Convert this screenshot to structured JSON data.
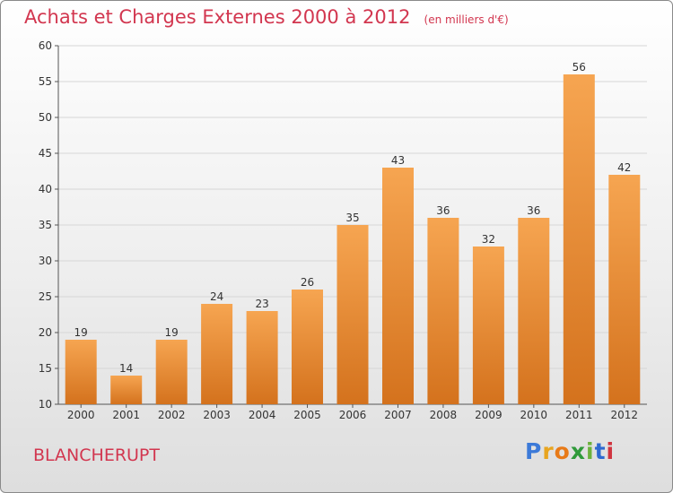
{
  "chart_title": "Achats et Charges Externes 2000 à 2012",
  "chart_unit": "(en milliers d'€)",
  "commune_name": "BLANCHERUPT",
  "logo": {
    "letters": [
      "P",
      "r",
      "o",
      "x",
      "i",
      "t",
      "i"
    ],
    "colors": [
      "#3c7ad8",
      "#e8a51f",
      "#e87a18",
      "#2f9a3a",
      "#6cb23c",
      "#2f6ad0",
      "#d0343f"
    ]
  },
  "colors": {
    "bar_light": "#f6a551",
    "bar_dark": "#d4721d",
    "title": "#d2364f",
    "grid": "#d6d6d6"
  },
  "chart_data": {
    "type": "bar",
    "categories": [
      "2000",
      "2001",
      "2002",
      "2003",
      "2004",
      "2005",
      "2006",
      "2007",
      "2008",
      "2009",
      "2010",
      "2011",
      "2012"
    ],
    "values": [
      19,
      14,
      19,
      24,
      23,
      26,
      35,
      43,
      36,
      32,
      36,
      56,
      42
    ],
    "ylim": [
      10,
      60
    ],
    "yticks": [
      10,
      15,
      20,
      25,
      30,
      35,
      40,
      45,
      50,
      55,
      60
    ],
    "grid": true,
    "data_labels": true
  }
}
